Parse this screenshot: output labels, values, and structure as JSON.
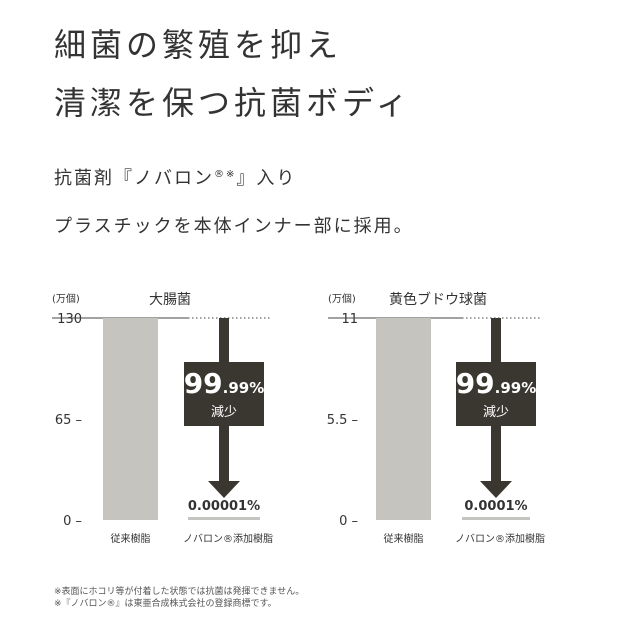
{
  "headline": {
    "line1": "細菌の繁殖を抑え",
    "line2": "清潔を保つ抗菌ボディ"
  },
  "subtitle": {
    "line1_text": "抗菌剤『ノバロン",
    "line1_mark": "®※",
    "line1_end": "』入り",
    "line2": "プラスチックを本体インナー部に採用。"
  },
  "colors": {
    "conventional_bar": "#c5c4bf",
    "arrow": "#3a3630",
    "label_box": "#3a3630",
    "novaron_bar": "#c5c4bf"
  },
  "chart_data": [
    {
      "type": "bar",
      "title": "大腸菌",
      "unit": "(万個)",
      "ylim": [
        0,
        130
      ],
      "yticks": [
        "130",
        "65 –",
        "0 –"
      ],
      "ytick_values": [
        130,
        65,
        0
      ],
      "categories": [
        "従来樹脂",
        "ノバロン®添加樹脂"
      ],
      "values": [
        130,
        1.3e-05
      ],
      "value_labels": [
        "",
        "0.00001%"
      ],
      "reduction": {
        "big": "99",
        "small": ".99%",
        "label": "減少"
      }
    },
    {
      "type": "bar",
      "title": "黄色ブドウ球菌",
      "unit": "(万個)",
      "ylim": [
        0,
        11
      ],
      "yticks": [
        "11",
        "5.5 –",
        "0 –"
      ],
      "ytick_values": [
        11,
        5.5,
        0
      ],
      "categories": [
        "従来樹脂",
        "ノバロン®添加樹脂"
      ],
      "values": [
        11,
        1.1e-05
      ],
      "value_labels": [
        "",
        "0.0001%"
      ],
      "reduction": {
        "big": "99",
        "small": ".99%",
        "label": "減少"
      }
    }
  ],
  "notes": [
    "※表面にホコリ等が付着した状態では抗菌は発揮できません。",
    "※『ノバロン®』は東亜合成株式会社の登録商標です。"
  ]
}
